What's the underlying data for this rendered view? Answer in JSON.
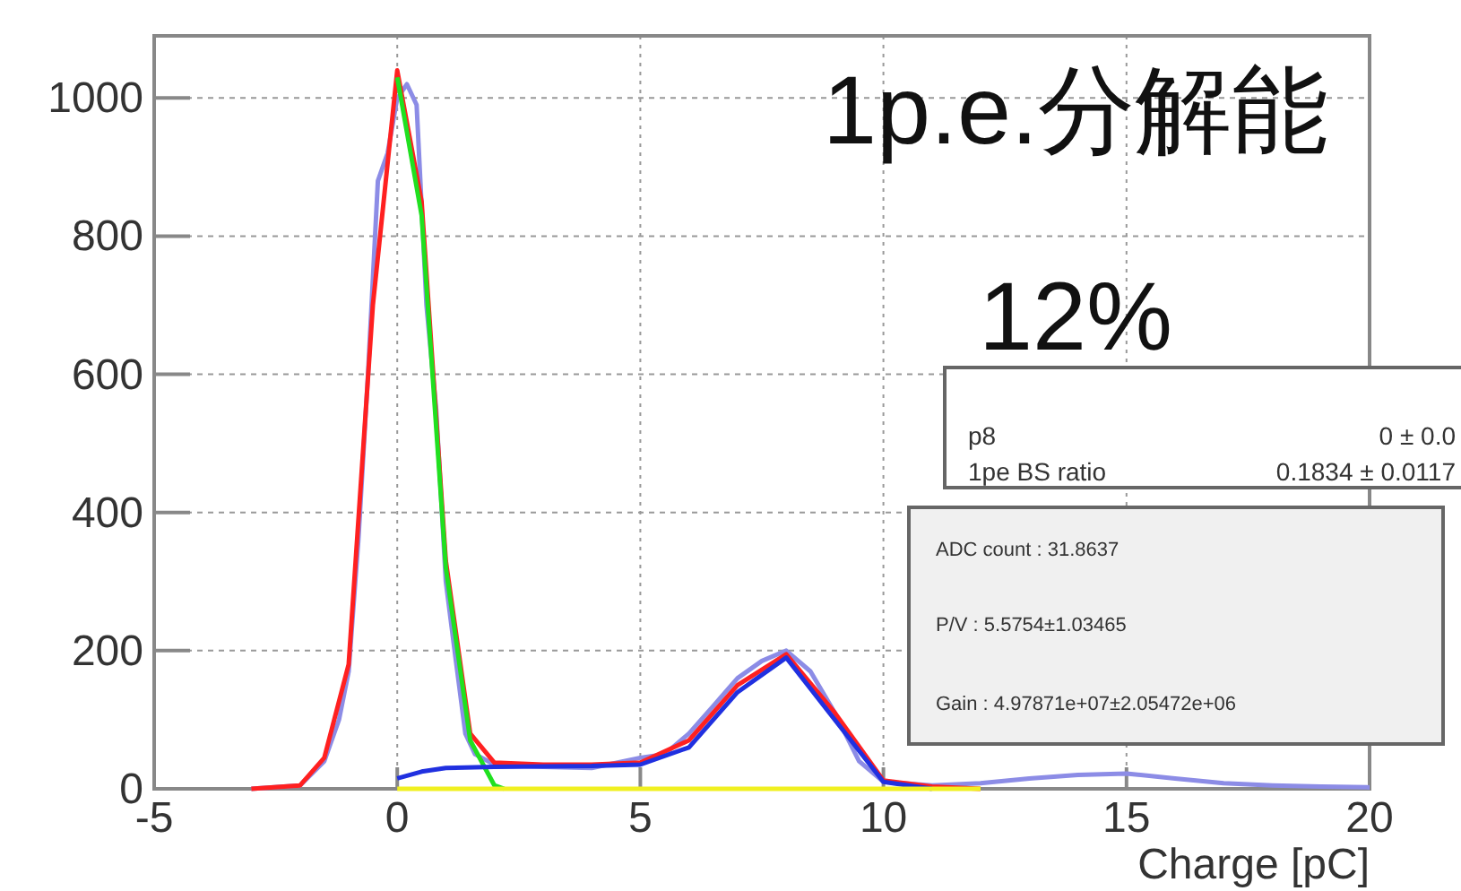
{
  "chart_data": {
    "type": "line",
    "xlabel": "Charge [pC]",
    "xlim": [
      -5,
      20
    ],
    "ylim": [
      0,
      1090
    ],
    "xticks": [
      -5,
      0,
      5,
      10,
      15,
      20
    ],
    "yticks": [
      0,
      200,
      400,
      600,
      800,
      1000
    ],
    "grid": true,
    "marker": "none",
    "line_style": "solid",
    "annotations": [
      "1p.e.分解能",
      "12%",
      "p8",
      "0 ± 0.0",
      "1pe BS ratio",
      "0.1834 ± 0.0117",
      "ADC count : 31.8637",
      "P/V : 5.5754±1.03465",
      "Gain : 4.97871e+07±2.05472e+06"
    ],
    "series": [
      {
        "color": "#8c8ce6",
        "x": [
          -3,
          -2,
          -1.5,
          -1.2,
          -1,
          -0.8,
          -0.6,
          -0.4,
          -0.2,
          0,
          0.2,
          0.4,
          0.6,
          0.8,
          1,
          1.2,
          1.4,
          1.6,
          2,
          3,
          4,
          5,
          5.5,
          6,
          6.5,
          7,
          7.5,
          8,
          8.5,
          9,
          9.5,
          10,
          11,
          12,
          13,
          14,
          15,
          16,
          17,
          18,
          19,
          20
        ],
        "values": [
          0,
          5,
          40,
          100,
          170,
          360,
          600,
          880,
          920,
          1000,
          1020,
          990,
          700,
          550,
          300,
          190,
          80,
          50,
          35,
          32,
          30,
          45,
          50,
          80,
          120,
          160,
          185,
          200,
          170,
          110,
          40,
          10,
          5,
          8,
          15,
          20,
          22,
          15,
          8,
          5,
          3,
          2
        ]
      },
      {
        "color": "#ff2020",
        "x": [
          -3,
          -2,
          -1.5,
          -1,
          -0.5,
          0,
          0.5,
          1,
          1.5,
          2,
          3,
          4,
          5,
          6,
          7,
          8,
          9,
          10,
          11,
          12
        ],
        "values": [
          0,
          5,
          45,
          180,
          700,
          1040,
          850,
          330,
          80,
          38,
          35,
          35,
          38,
          70,
          150,
          195,
          110,
          12,
          3,
          0
        ]
      },
      {
        "color": "#20e020",
        "x": [
          0,
          0.5,
          1,
          1.5,
          2,
          2.2
        ],
        "values": [
          1030,
          830,
          320,
          70,
          5,
          0
        ]
      },
      {
        "color": "#2030e0",
        "x": [
          0,
          0.5,
          1,
          2,
          4,
          5,
          6,
          7,
          8,
          9,
          10,
          11
        ],
        "values": [
          15,
          25,
          30,
          32,
          33,
          35,
          60,
          140,
          190,
          100,
          10,
          0
        ]
      },
      {
        "color": "#f0f020",
        "x": [
          0,
          12
        ],
        "values": [
          0,
          0
        ]
      }
    ]
  }
}
